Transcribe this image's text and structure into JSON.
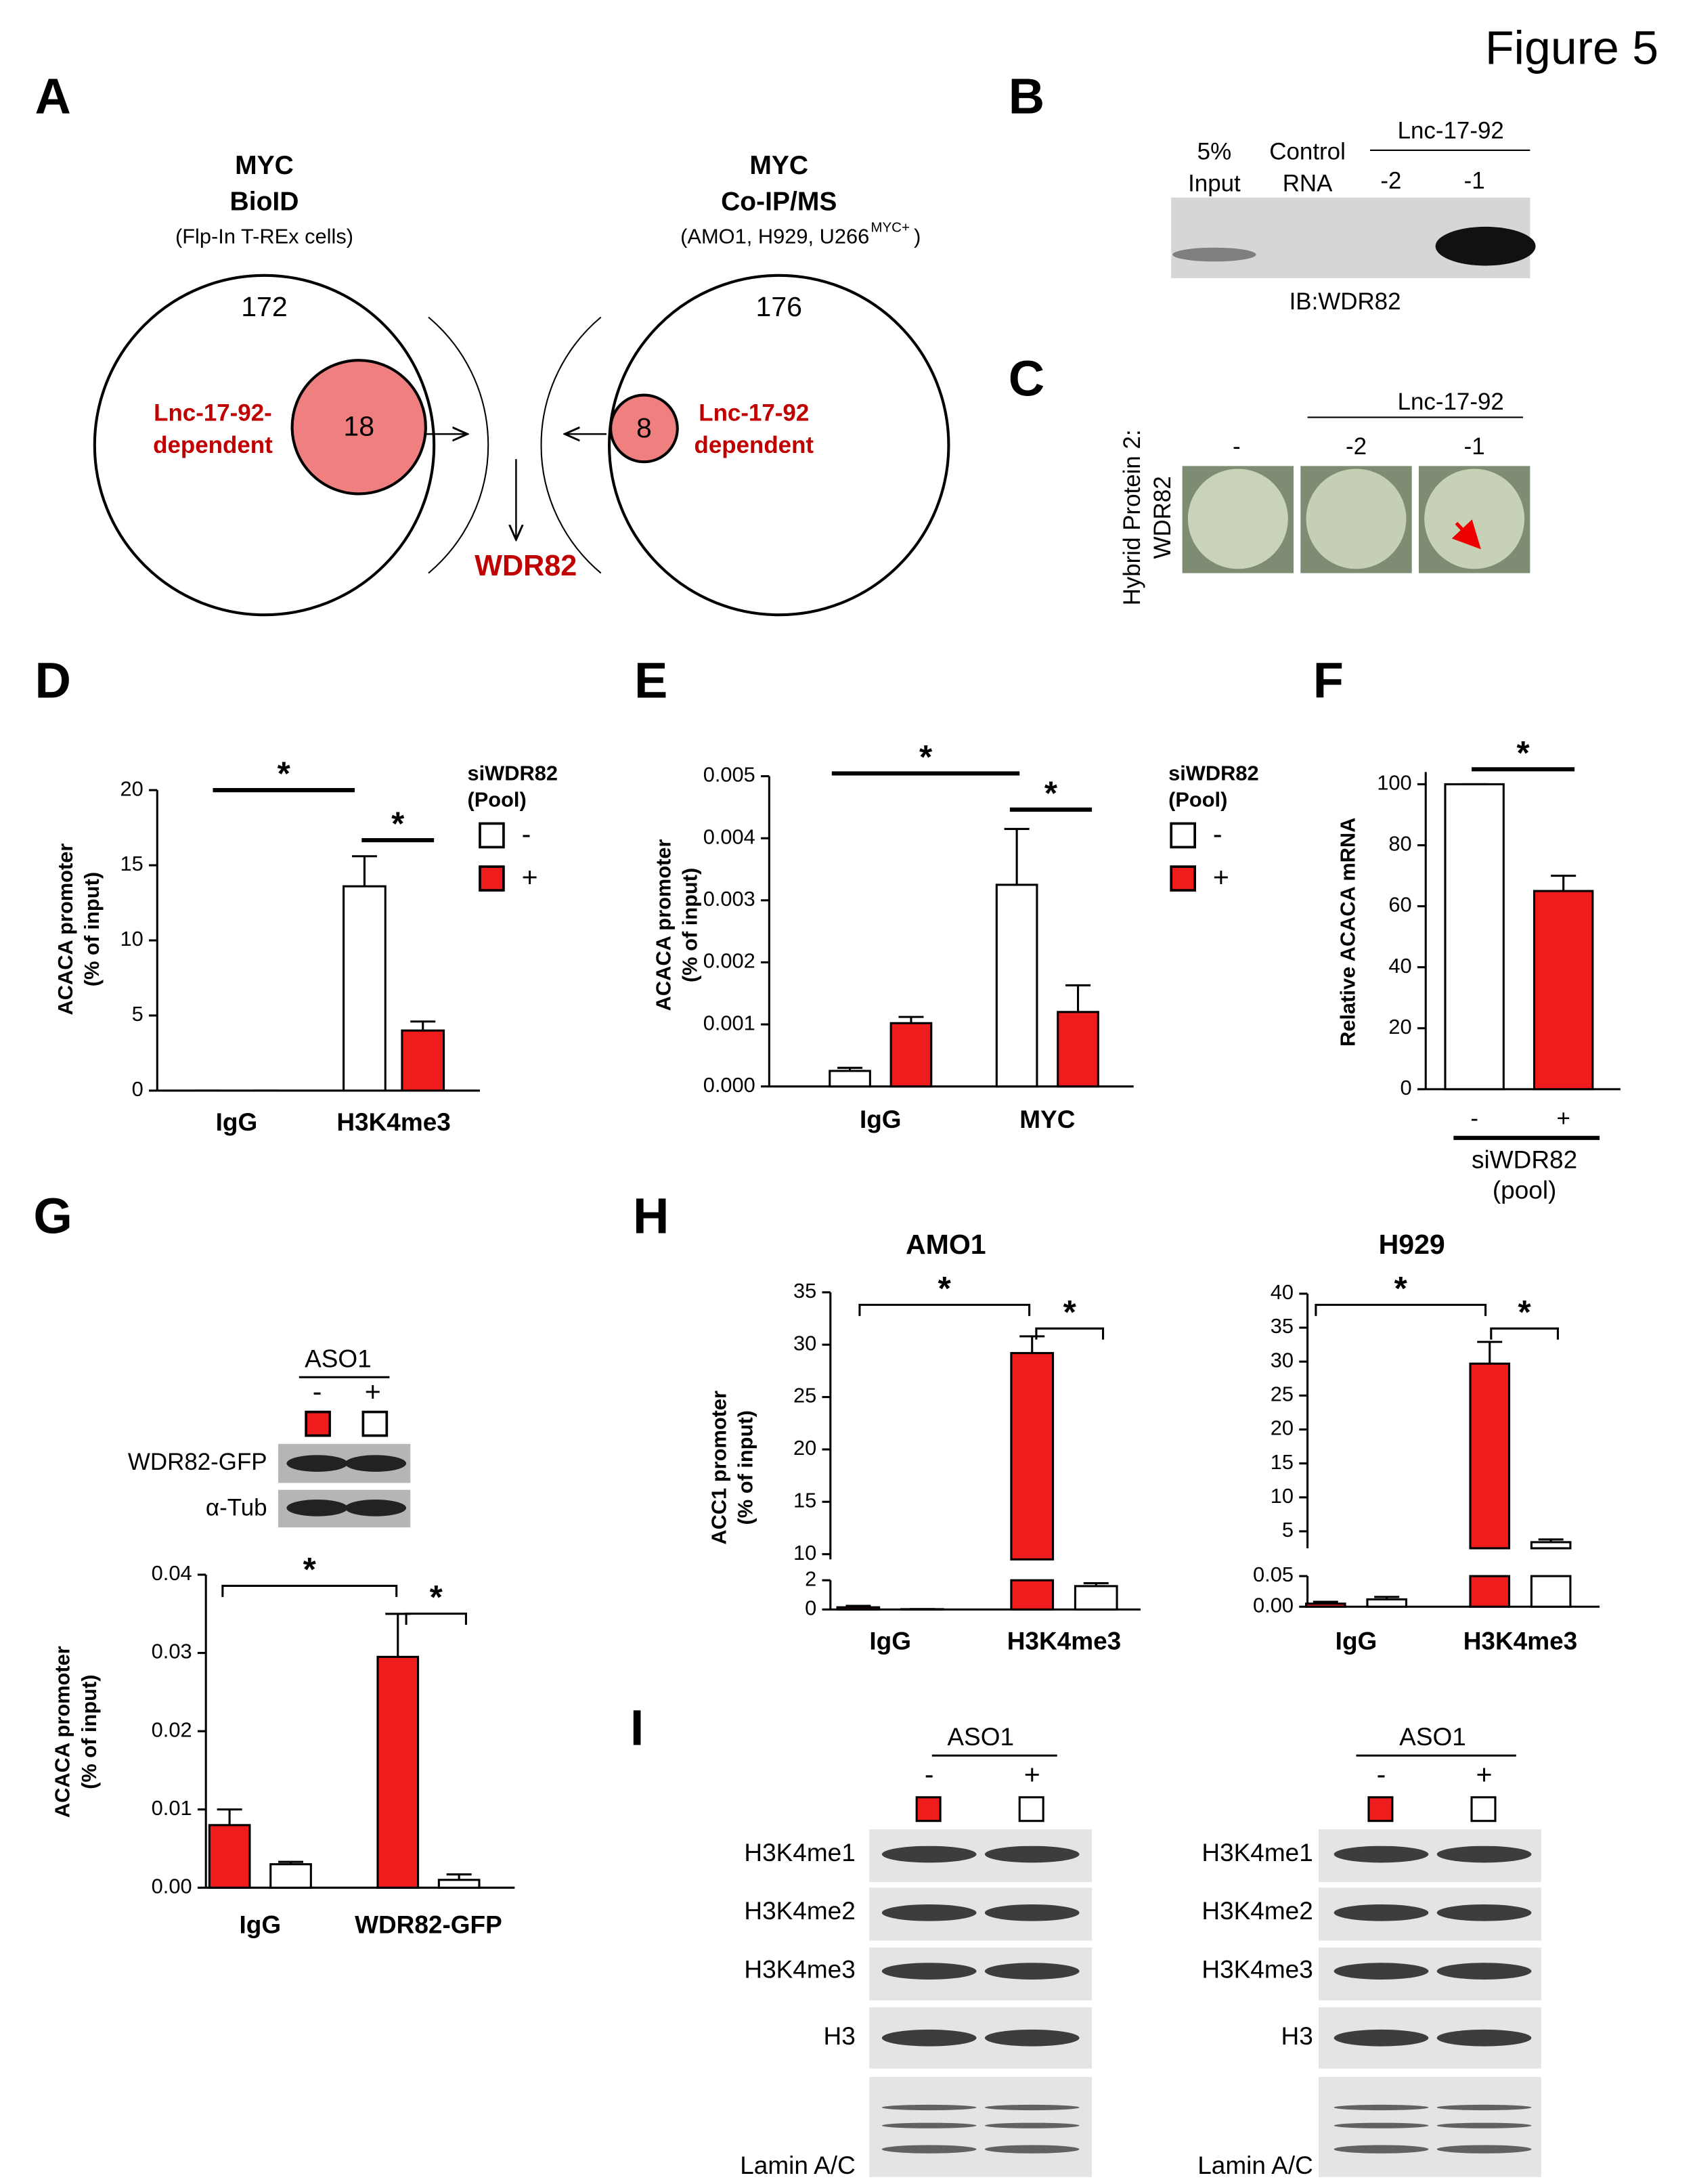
{
  "figure_title": "Figure 5",
  "panel_labels": [
    "A",
    "B",
    "C",
    "D",
    "E",
    "F",
    "G",
    "H",
    "I"
  ],
  "venn": {
    "left": {
      "title": [
        "MYC",
        "BioID"
      ],
      "subtitle": "(Flp-In T-REx cells)",
      "count": 172,
      "subset": {
        "count": 18,
        "label": [
          "Lnc-17-92-",
          "dependent"
        ]
      }
    },
    "right": {
      "title": [
        "MYC",
        "Co-IP/MS"
      ],
      "subtitle": "(AMO1, H929, U266",
      "subtitle_sup": "MYC+",
      "subtitle_end": ")",
      "count": 176,
      "subset": {
        "count": 8,
        "label": [
          "Lnc-17-92",
          "dependent"
        ]
      }
    },
    "intersection": "WDR82"
  },
  "blot_B": {
    "lanes": [
      [
        "5%",
        "Input"
      ],
      [
        "Control",
        "RNA"
      ],
      "-2",
      "-1"
    ],
    "group": "Lnc-17-92",
    "antibody": "IB:WDR82"
  },
  "panel_C": {
    "ylabel": [
      "Hybrid Protein 2:",
      "WDR82"
    ],
    "lanes": [
      "-",
      "-2",
      "-1"
    ],
    "group": "Lnc-17-92"
  },
  "blot_G": {
    "rows": [
      "WDR82-GFP",
      "α-Tub"
    ]
  },
  "panel_I": [
    {
      "group": "ASO1",
      "lanes": [
        "-",
        "+"
      ],
      "rows": [
        "H3K4me1",
        "H3K4me2",
        "H3K4me3",
        "H3",
        "Lamin A/C"
      ]
    },
    {
      "group": "ASO1",
      "lanes": [
        "-",
        "+"
      ],
      "rows": [
        "H3K4me1",
        "H3K4me2",
        "H3K4me3",
        "H3",
        "Lamin A/C"
      ]
    }
  ],
  "chart_data": [
    {
      "type": "bar",
      "categories": [
        "IgG",
        "H3K4me3"
      ],
      "ylabel": [
        "ACACA promoter",
        "(% of input)"
      ],
      "ylim": [
        0,
        20
      ],
      "yticks": [
        0,
        5,
        10,
        15,
        20
      ],
      "legend_title": [
        "siWDR82",
        "(Pool)"
      ],
      "series": [
        {
          "name": "-",
          "color": "#ffffff",
          "values": [
            0,
            13.6
          ],
          "errors": [
            0,
            2.0
          ]
        },
        {
          "name": "+",
          "color": "#ee1c1c",
          "values": [
            0,
            4.0
          ],
          "errors": [
            0,
            0.6
          ]
        }
      ],
      "significance": [
        "*",
        "*"
      ]
    },
    {
      "type": "bar",
      "categories": [
        "IgG",
        "MYC"
      ],
      "ylabel": [
        "ACACA promoter",
        "(% of input)"
      ],
      "ylim": [
        0,
        0.005
      ],
      "yticks": [
        {
          "value": 0,
          "label": "0.000"
        },
        {
          "value": 0.001,
          "label": "0.001"
        },
        {
          "value": 0.002,
          "label": "0.002"
        },
        {
          "value": 0.003,
          "label": "0.003"
        },
        {
          "value": 0.004,
          "label": "0.004"
        },
        {
          "value": 0.005,
          "label": "0.005"
        }
      ],
      "legend_title": [
        "siWDR82",
        "(Pool)"
      ],
      "series": [
        {
          "name": "-",
          "color": "#ffffff",
          "values": [
            0.00025,
            0.00325
          ],
          "errors": [
            5e-05,
            0.0009
          ]
        },
        {
          "name": "+",
          "color": "#ee1c1c",
          "values": [
            0.00102,
            0.0012
          ],
          "errors": [
            0.0001,
            0.00043
          ]
        }
      ],
      "significance": [
        "*",
        "*"
      ]
    },
    {
      "type": "bar",
      "categories": [
        "-",
        "+"
      ],
      "xlabel": [
        "siWDR82",
        "(pool)"
      ],
      "ylabel": "Relative ACACA mRNA",
      "ylim": [
        0,
        104
      ],
      "yticks": [
        0,
        20,
        40,
        60,
        80,
        100
      ],
      "values": [
        100,
        65
      ],
      "errors": [
        0,
        5
      ],
      "colors": [
        "#ffffff",
        "#ee1c1c"
      ],
      "significance": [
        "*"
      ]
    },
    {
      "type": "bar",
      "categories": [
        "IgG",
        "WDR82-GFP"
      ],
      "ylabel": [
        "ACACA promoter",
        "(% of input)"
      ],
      "ylim": [
        0,
        0.04
      ],
      "yticks": [
        {
          "value": 0,
          "label": "0.00"
        },
        {
          "value": 0.01,
          "label": "0.01"
        },
        {
          "value": 0.02,
          "label": "0.02"
        },
        {
          "value": 0.03,
          "label": "0.03"
        },
        0.04
      ],
      "legend_title": "ASO1",
      "series": [
        {
          "name": "-",
          "color": "#ee1c1c",
          "values": [
            0.008,
            0.0295
          ],
          "errors": [
            0.002,
            0.0055
          ]
        },
        {
          "name": "+",
          "color": "#ffffff",
          "values": [
            0.003,
            0.001
          ],
          "errors": [
            0.0003,
            0.0007
          ]
        }
      ],
      "significance": [
        "*",
        "*"
      ]
    },
    {
      "type": "bar",
      "title": "AMO1",
      "categories": [
        "IgG",
        "H3K4me3"
      ],
      "ylabel": [
        "ACC1 promoter",
        "(% of input)"
      ],
      "segments": [
        {
          "ylim": [
            0,
            2
          ],
          "yticks": [
            0,
            2
          ]
        },
        {
          "ylim": [
            9.5,
            35
          ],
          "yticks": [
            10,
            15,
            20,
            25,
            30,
            35
          ]
        }
      ],
      "series": [
        {
          "color": "#ee1c1c",
          "values": [
            0.15,
            29.2
          ],
          "errors": [
            0.1,
            1.6
          ]
        },
        {
          "color": "#ffffff",
          "values": [
            0.02,
            1.6
          ],
          "errors": [
            0.01,
            0.2
          ]
        }
      ],
      "significance": [
        "*",
        "*"
      ]
    },
    {
      "type": "bar",
      "title": "H929",
      "categories": [
        "IgG",
        "H3K4me3"
      ],
      "segments": [
        {
          "ylim": [
            0,
            0.05
          ],
          "yticks": [
            {
              "value": 0,
              "label": "0.00"
            },
            {
              "value": 0.05,
              "label": "0.05"
            }
          ]
        },
        {
          "ylim": [
            2.5,
            40
          ],
          "yticks": [
            5,
            10,
            15,
            20,
            25,
            30,
            35,
            40
          ]
        }
      ],
      "series": [
        {
          "color": "#ee1c1c",
          "values": [
            0.005,
            29.7
          ],
          "errors": [
            0.003,
            3.2
          ]
        },
        {
          "color": "#ffffff",
          "values": [
            0.012,
            3.4
          ],
          "errors": [
            0.004,
            0.4
          ]
        }
      ],
      "significance": [
        "*",
        "*"
      ]
    }
  ]
}
